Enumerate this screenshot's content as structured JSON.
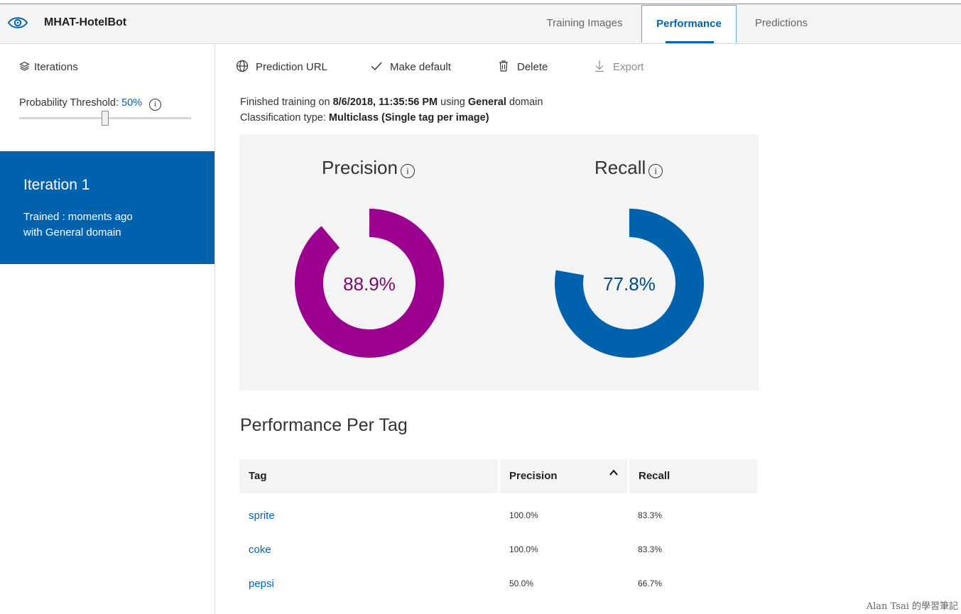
{
  "app": {
    "title": "MHAT-HotelBot"
  },
  "tabs": [
    {
      "label": "Training Images"
    },
    {
      "label": "Performance",
      "active": true
    },
    {
      "label": "Predictions"
    }
  ],
  "sidebar": {
    "iterations_label": "Iterations",
    "threshold_label": "Probability Threshold:",
    "threshold_value": "50%",
    "threshold_fraction": 0.5,
    "iteration": {
      "name": "Iteration 1",
      "trained": "Trained : moments ago",
      "domain": "with General domain"
    }
  },
  "toolbar": {
    "prediction_url": "Prediction URL",
    "make_default": "Make default",
    "delete": "Delete",
    "export": "Export"
  },
  "training_info": {
    "prefix": "Finished training on",
    "date": "8/6/2018, 11:35:56 PM",
    "using": "using",
    "domain": "General",
    "domain_suffix": "domain",
    "class_prefix": "Classification type:",
    "class_value": "Multiclass (Single tag per image)"
  },
  "metrics": {
    "precision": {
      "title": "Precision",
      "value": 0.889,
      "label": "88.9%",
      "color": "#9b008e"
    },
    "recall": {
      "title": "Recall",
      "value": 0.778,
      "label": "77.8%",
      "color": "#0062ad"
    }
  },
  "per_tag": {
    "title": "Performance Per Tag",
    "columns": [
      "Tag",
      "Precision",
      "Recall"
    ],
    "rows": [
      {
        "tag": "sprite",
        "precision": "100.0%",
        "recall": "83.3%"
      },
      {
        "tag": "coke",
        "precision": "100.0%",
        "recall": "83.3%"
      },
      {
        "tag": "pepsi",
        "precision": "50.0%",
        "recall": "66.7%"
      }
    ]
  },
  "watermark": "Alan Tsai 的學習筆記"
}
